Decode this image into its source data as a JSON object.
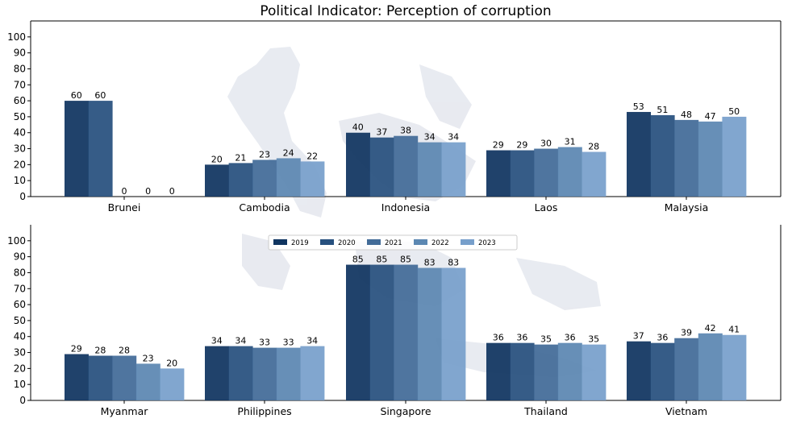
{
  "chart_data": {
    "type": "bar",
    "title": "Political Indicator: Perception of corruption",
    "xlabel": "",
    "ylabel": "",
    "ylim": [
      0,
      110
    ],
    "yticks": [
      0,
      10,
      20,
      30,
      40,
      50,
      60,
      70,
      80,
      90,
      100
    ],
    "grid": false,
    "legend_position": "top-center (lower panel)",
    "series_names": [
      "2019",
      "2020",
      "2021",
      "2022",
      "2023"
    ],
    "colors": [
      "#0f3460",
      "#27507e",
      "#426b98",
      "#5b87b2",
      "#779fcb"
    ],
    "panels": [
      {
        "categories": [
          "Brunei",
          "Cambodia",
          "Indonesia",
          "Laos",
          "Malaysia"
        ],
        "series": [
          {
            "name": "2019",
            "values": [
              60,
              20,
              40,
              29,
              53
            ]
          },
          {
            "name": "2020",
            "values": [
              60,
              21,
              37,
              29,
              51
            ]
          },
          {
            "name": "2021",
            "values": [
              0,
              23,
              38,
              30,
              48
            ]
          },
          {
            "name": "2022",
            "values": [
              0,
              24,
              34,
              31,
              47
            ]
          },
          {
            "name": "2023",
            "values": [
              0,
              22,
              34,
              28,
              50
            ]
          }
        ]
      },
      {
        "categories": [
          "Myanmar",
          "Philippines",
          "Singapore",
          "Thailand",
          "Vietnam"
        ],
        "series": [
          {
            "name": "2019",
            "values": [
              29,
              34,
              85,
              36,
              37
            ]
          },
          {
            "name": "2020",
            "values": [
              28,
              34,
              85,
              36,
              36
            ]
          },
          {
            "name": "2021",
            "values": [
              28,
              33,
              85,
              35,
              39
            ]
          },
          {
            "name": "2022",
            "values": [
              23,
              33,
              83,
              36,
              42
            ]
          },
          {
            "name": "2023",
            "values": [
              20,
              34,
              83,
              35,
              41
            ]
          }
        ]
      }
    ]
  }
}
